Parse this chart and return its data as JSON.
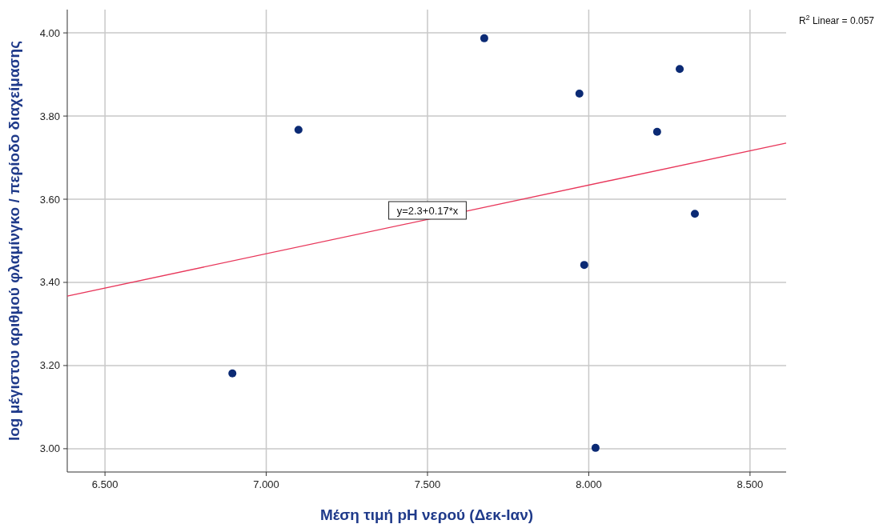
{
  "chart_data": {
    "type": "scatter",
    "xlabel": "Μέση τιμή pH νερού (Δεκ-Ιαν)",
    "ylabel": "log μέγιστου αριθμού φλαμίνγκο / περίοδο διαχείμασης",
    "xlim": [
      6.383,
      8.612
    ],
    "ylim": [
      2.944,
      4.056
    ],
    "xticks": [
      {
        "value": 6.5,
        "label": "6.500"
      },
      {
        "value": 7,
        "label": "7.000"
      },
      {
        "value": 7.5,
        "label": "7.500"
      },
      {
        "value": 8,
        "label": "8.000"
      },
      {
        "value": 8.5,
        "label": "8.500"
      }
    ],
    "yticks": [
      {
        "value": 3,
        "label": "3.00"
      },
      {
        "value": 3.2,
        "label": "3.20"
      },
      {
        "value": 3.4,
        "label": "3.40"
      },
      {
        "value": 3.6,
        "label": "3.60"
      },
      {
        "value": 3.8,
        "label": "3.80"
      },
      {
        "value": 4,
        "label": "4.00"
      }
    ],
    "grid": true,
    "series": [
      {
        "marker": "circle",
        "color": "#0b2a74",
        "x": [
          6.895,
          7.1,
          7.676,
          7.971,
          7.986,
          8.021,
          8.212,
          8.282,
          8.329
        ],
        "values": [
          3.181,
          3.767,
          3.987,
          3.854,
          3.442,
          3.002,
          3.762,
          3.913,
          3.565
        ]
      },
      {
        "type": "line",
        "color": "#e8365a",
        "x": [
          6.383,
          8.612
        ],
        "values": [
          3.367,
          3.735
        ]
      }
    ],
    "annotations": [
      "y=2.3+0.17*x",
      "R$^{2}$ Linear = 0.057"
    ]
  }
}
